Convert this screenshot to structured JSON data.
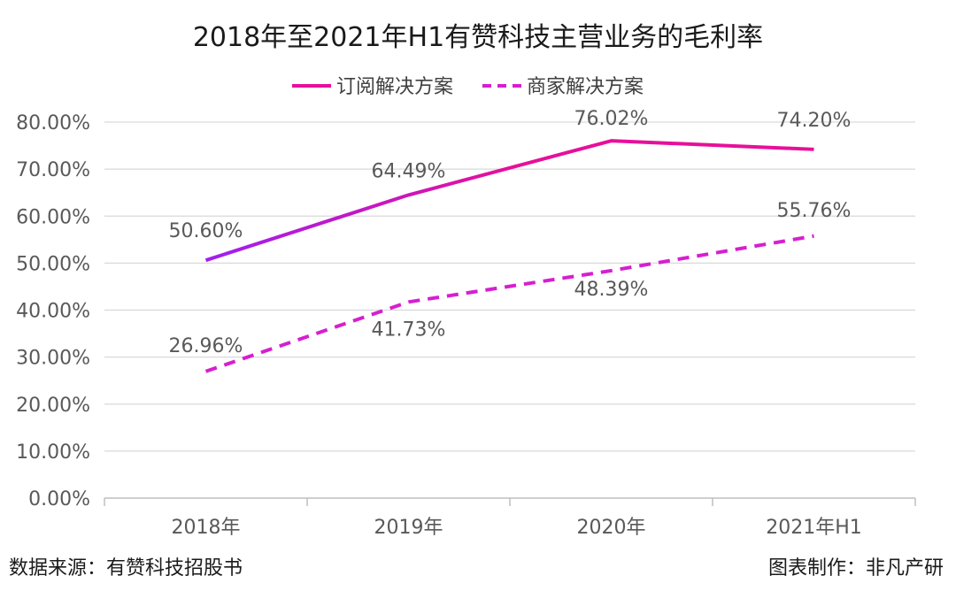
{
  "chart_data": {
    "type": "line",
    "title": "2018年至2021年H1有赞科技主营业务的毛利率",
    "categories": [
      "2018年",
      "2019年",
      "2020年",
      "2021年H1"
    ],
    "series": [
      {
        "name": "订阅解决方案",
        "values": [
          50.6,
          64.49,
          76.02,
          74.2
        ],
        "labels": [
          "50.60%",
          "64.49%",
          "76.02%",
          "74.20%"
        ],
        "color": "#e6109a",
        "gradient_start_color": "#a020f0",
        "line_style": "solid"
      },
      {
        "name": "商家解决方案",
        "values": [
          26.96,
          41.73,
          48.39,
          55.76
        ],
        "labels": [
          "26.96%",
          "41.73%",
          "48.39%",
          "55.76%"
        ],
        "color": "#d61fd0",
        "line_style": "dashed"
      }
    ],
    "ylim": [
      0,
      80
    ],
    "yticks": [
      "0.00%",
      "10.00%",
      "20.00%",
      "30.00%",
      "40.00%",
      "50.00%",
      "60.00%",
      "70.00%",
      "80.00%"
    ],
    "grid": true,
    "legend": "top"
  },
  "footer": {
    "source": "数据来源：有赞科技招股书",
    "credit": "图表制作：非凡产研"
  }
}
